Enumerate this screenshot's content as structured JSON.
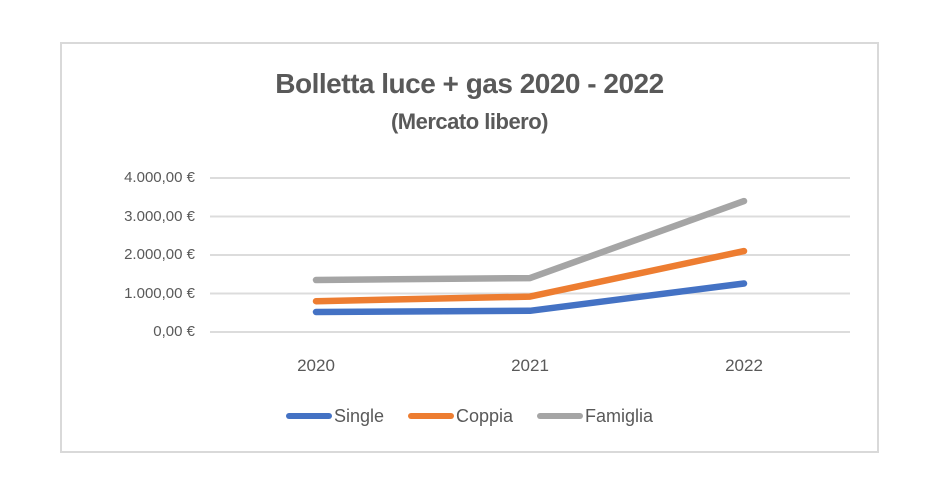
{
  "chart": {
    "title": "Bolletta luce + gas 2020 - 2022",
    "subtitle": "(Mercato libero)"
  },
  "chart_data": {
    "type": "line",
    "title": "Bolletta luce + gas 2020 - 2022",
    "subtitle": "(Mercato libero)",
    "categories": [
      "2020",
      "2021",
      "2022"
    ],
    "series": [
      {
        "name": "Single",
        "color": "#4472C4",
        "values": [
          520,
          550,
          1260
        ]
      },
      {
        "name": "Coppia",
        "color": "#ED7D31",
        "values": [
          800,
          920,
          2100
        ]
      },
      {
        "name": "Famiglia",
        "color": "#A5A5A5",
        "values": [
          1350,
          1400,
          3400
        ]
      }
    ],
    "xlabel": "",
    "ylabel": "",
    "ylim": [
      0,
      4000
    ],
    "ytick_step": 1000,
    "yticks": [
      {
        "value": 0,
        "label": "0,00 €"
      },
      {
        "value": 1000,
        "label": "1.000,00 €"
      },
      {
        "value": 2000,
        "label": "2.000,00 €"
      },
      {
        "value": 3000,
        "label": "3.000,00 €"
      },
      {
        "value": 4000,
        "label": "4.000,00 €"
      }
    ],
    "grid": true,
    "legend_position": "bottom",
    "currency_format": "#.###,## €"
  },
  "colors": {
    "text": "#595959",
    "gridline": "#DCDCDC",
    "frame_border": "#D9D9D9",
    "background": "#FFFFFF"
  }
}
